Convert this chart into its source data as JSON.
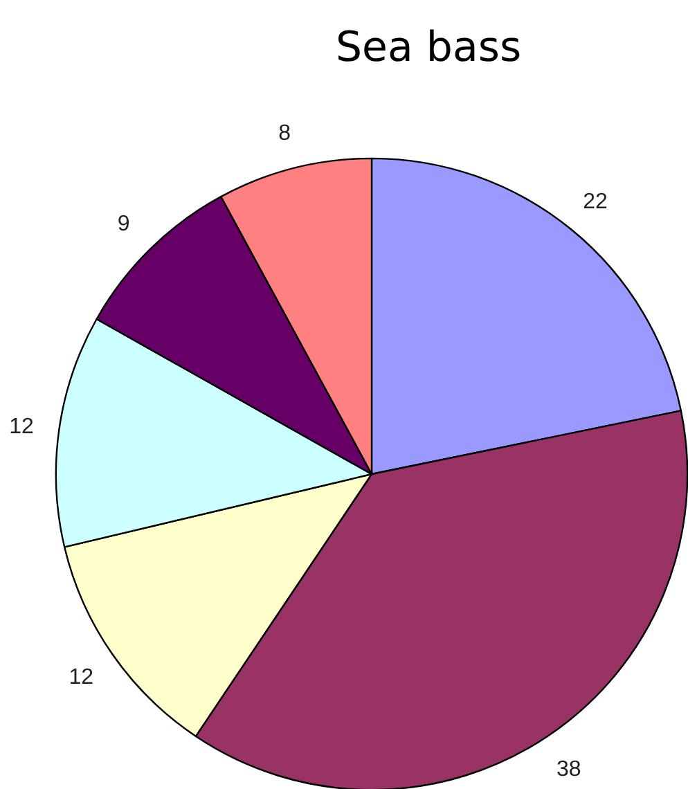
{
  "chart_data": {
    "type": "pie",
    "title": "Sea bass",
    "categories": [
      null,
      null,
      null,
      null,
      null,
      null
    ],
    "values": [
      22,
      38,
      12,
      12,
      9,
      8
    ],
    "colors": [
      "#9999ff",
      "#993366",
      "#ffffcc",
      "#ccffff",
      "#660066",
      "#ff8080"
    ],
    "data_labels": true
  }
}
